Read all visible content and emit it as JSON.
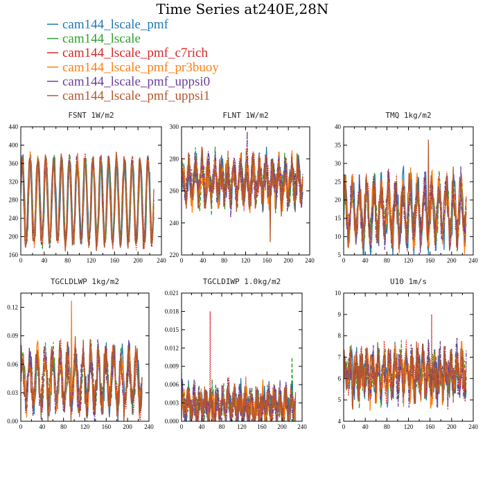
{
  "title": "Time Series at240E,28N",
  "legend": [
    {
      "name": "cam144_lscale_pmf",
      "color": "#1f77b4",
      "dash": "solid"
    },
    {
      "name": "cam144_lscale",
      "color": "#2ca02c",
      "dash": "dashed"
    },
    {
      "name": "cam144_lscale_pmf_c7rich",
      "color": "#d62728",
      "dash": "dotted"
    },
    {
      "name": "cam144_lscale_pmf_pr3buoy",
      "color": "#ff7f0e",
      "dash": "solid"
    },
    {
      "name": "cam144_lscale_pmf_uppsi0",
      "color": "#6a3d9a",
      "dash": "dashdot"
    },
    {
      "name": "cam144_lscale_pmf_uppsi1",
      "color": "#b5562b",
      "dash": "solid"
    }
  ],
  "chart_data": [
    {
      "type": "line",
      "title": "FSNT   1W/m2",
      "xlim": [
        0,
        240
      ],
      "ylim": [
        160,
        440
      ],
      "xticks": [
        "0",
        "40",
        "80",
        "120",
        "160",
        "200",
        "240"
      ],
      "yticks": [
        "160",
        "200",
        "240",
        "280",
        "320",
        "360",
        "400",
        "440"
      ],
      "series_length": 228,
      "mean": 278,
      "amplitude": 95,
      "noise": 12,
      "periods": 17,
      "spikes": []
    },
    {
      "type": "line",
      "title": "FLNT   1W/m2",
      "xlim": [
        0,
        240
      ],
      "ylim": [
        220,
        300
      ],
      "xticks": [
        "0",
        "40",
        "80",
        "120",
        "160",
        "200",
        "240"
      ],
      "yticks": [
        "220",
        "240",
        "260",
        "280",
        "300"
      ],
      "series_length": 228,
      "mean": 266,
      "amplitude": 8,
      "noise": 9,
      "periods": 19,
      "spikes": [
        {
          "x": 166,
          "y": 228,
          "series": 5
        },
        {
          "x": 123,
          "y": 297,
          "series": 4
        }
      ]
    },
    {
      "type": "line",
      "title": "TMQ   1kg/m2",
      "xlim": [
        0,
        240
      ],
      "ylim": [
        5,
        40
      ],
      "xticks": [
        "0",
        "40",
        "80",
        "120",
        "160",
        "200",
        "240"
      ],
      "yticks": [
        "5",
        "10",
        "15",
        "20",
        "25",
        "30",
        "35",
        "40"
      ],
      "series_length": 228,
      "mean": 17,
      "amplitude": 7,
      "noise": 4,
      "periods": 17,
      "spikes": [
        {
          "x": 157,
          "y": 36.5,
          "series": 5
        }
      ]
    },
    {
      "type": "line",
      "title": "TGCLDLWP   1kg/m2",
      "xlim": [
        0,
        240
      ],
      "ylim": [
        0,
        0.135
      ],
      "xticks": [
        "0",
        "40",
        "80",
        "120",
        "160",
        "200",
        "240"
      ],
      "yticks": [
        "0.00",
        "0.03",
        "0.06",
        "0.09",
        "0.12"
      ],
      "series_length": 228,
      "mean": 0.043,
      "amplitude": 0.025,
      "noise": 0.014,
      "periods": 16,
      "spikes": [
        {
          "x": 95,
          "y": 0.127,
          "series": 3
        }
      ]
    },
    {
      "type": "line",
      "title": "TGCLDIWP   1.0kg/m2",
      "xlim": [
        0,
        240
      ],
      "ylim": [
        0,
        0.021
      ],
      "xticks": [
        "0",
        "40",
        "80",
        "120",
        "160",
        "200",
        "240"
      ],
      "yticks": [
        "0.000",
        "0.003",
        "0.006",
        "0.009",
        "0.012",
        "0.015",
        "0.018",
        "0.021"
      ],
      "series_length": 228,
      "mean": 0.0025,
      "amplitude": 0.0015,
      "noise": 0.0022,
      "periods": 20,
      "spikes": [
        {
          "x": 57,
          "y": 0.018,
          "series": 2
        },
        {
          "x": 220,
          "y": 0.0105,
          "series": 1
        }
      ]
    },
    {
      "type": "line",
      "title": "U10   1m/s",
      "xlim": [
        0,
        240
      ],
      "ylim": [
        4,
        10
      ],
      "xticks": [
        "0",
        "40",
        "80",
        "120",
        "160",
        "200",
        "240"
      ],
      "yticks": [
        "4",
        "5",
        "6",
        "7",
        "8",
        "9",
        "10"
      ],
      "series_length": 228,
      "mean": 6.2,
      "amplitude": 0.6,
      "noise": 0.8,
      "periods": 22,
      "spikes": [
        {
          "x": 163,
          "y": 9.0,
          "series": 2
        }
      ]
    }
  ]
}
